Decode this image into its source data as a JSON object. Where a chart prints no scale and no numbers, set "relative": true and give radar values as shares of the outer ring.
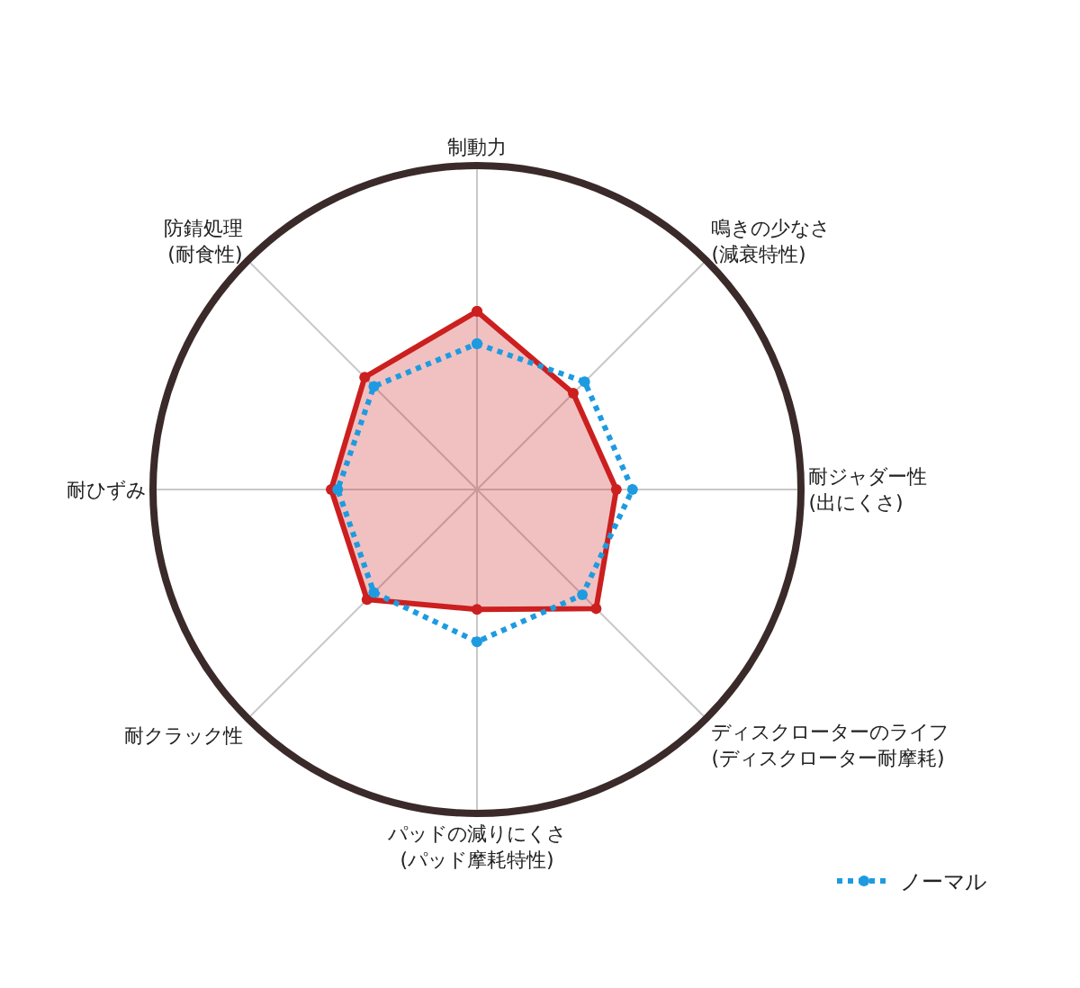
{
  "chart_data": {
    "type": "radar",
    "relative": true,
    "ylim": [
      0,
      1
    ],
    "grid": true,
    "legend": "bottom right",
    "marker": "circle",
    "categories": [
      "制動力",
      "鳴きの少なさ\n(減衰特性)",
      "耐ジャダー性\n(出にくさ)",
      "ディスクローターのライフ\n(ディスクローター耐摩耗)",
      "パッドの減りにくさ\n(パッド摩耗特性)",
      "耐クラック性",
      "耐ひずみ",
      "防錆処理\n(耐食性)"
    ],
    "series": [
      {
        "color": "#cc1f1f",
        "line_style": "solid",
        "values": [
          0.55,
          0.42,
          0.43,
          0.52,
          0.37,
          0.48,
          0.45,
          0.49
        ]
      },
      {
        "name": "ノーマル",
        "color": "#1e9be0",
        "line_style": "dotted",
        "values": [
          0.45,
          0.47,
          0.48,
          0.46,
          0.47,
          0.45,
          0.43,
          0.45
        ]
      }
    ]
  }
}
